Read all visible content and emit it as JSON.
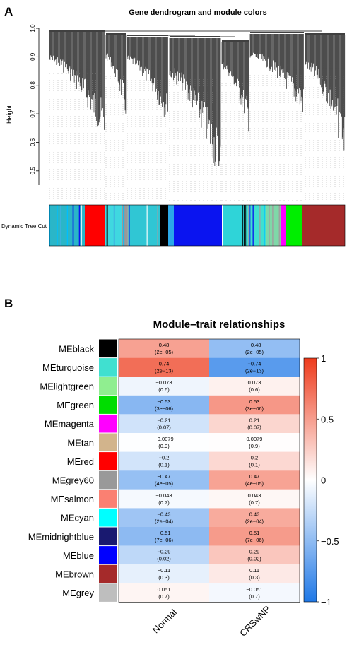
{
  "panel_a": {
    "label": "A",
    "title": "Gene dendrogram and module colors",
    "ylabel": "Height",
    "yticks": [
      "0.5",
      "0.6",
      "0.7",
      "0.8",
      "0.9",
      "1.0"
    ],
    "color_bar_label": "Dynamic Tree Cut"
  },
  "panel_b": {
    "label": "B",
    "title": "Module–trait relationships",
    "colorbar_ticks": [
      "1",
      "0.5",
      "0",
      "−0.5",
      "−1"
    ],
    "colorbar_colors": {
      "neg": "#1f78e6",
      "mid": "#ffffff",
      "pos": "#ee3b1c"
    }
  },
  "chart_data": [
    {
      "type": "dendrogram",
      "title": "Gene dendrogram and module colors",
      "ylabel": "Height",
      "ylim": [
        0.45,
        1.0
      ],
      "module_color_bar": [
        "turquoise",
        "red",
        "grey",
        "turquoise",
        "black",
        "blue",
        "turquoise",
        "lightgreen",
        "magenta",
        "green",
        "brown"
      ]
    },
    {
      "type": "heatmap",
      "title": "Module–trait relationships",
      "columns": [
        "Normal",
        "CRSwNP"
      ],
      "rows": [
        {
          "name": "MEblack",
          "color": "#000000",
          "values": [
            0.48,
            -0.48
          ],
          "labels": [
            "0.48",
            "−0.48"
          ],
          "pvals": [
            "(2e−05)",
            "(2e−05)"
          ]
        },
        {
          "name": "MEturquoise",
          "color": "#40e0d0",
          "values": [
            0.74,
            -0.74
          ],
          "labels": [
            "0.74",
            "−0.74"
          ],
          "pvals": [
            "(2e−13)",
            "(2e−13)"
          ]
        },
        {
          "name": "MElightgreen",
          "color": "#90ee90",
          "values": [
            -0.073,
            0.073
          ],
          "labels": [
            "−0.073",
            "0.073"
          ],
          "pvals": [
            "(0.6)",
            "(0.6)"
          ]
        },
        {
          "name": "MEgreen",
          "color": "#00dd00",
          "values": [
            -0.53,
            0.53
          ],
          "labels": [
            "−0.53",
            "0.53"
          ],
          "pvals": [
            "(3e−06)",
            "(3e−06)"
          ]
        },
        {
          "name": "MEmagenta",
          "color": "#ff00ff",
          "values": [
            -0.21,
            0.21
          ],
          "labels": [
            "−0.21",
            "0.21"
          ],
          "pvals": [
            "(0.07)",
            "(0.07)"
          ]
        },
        {
          "name": "MEtan",
          "color": "#d2b48c",
          "values": [
            -0.0079,
            0.0079
          ],
          "labels": [
            "−0.0079",
            "0.0079"
          ],
          "pvals": [
            "(0.9)",
            "(0.9)"
          ]
        },
        {
          "name": "MEred",
          "color": "#ff0000",
          "values": [
            -0.2,
            0.2
          ],
          "labels": [
            "−0.2",
            "0.2"
          ],
          "pvals": [
            "(0.1)",
            "(0.1)"
          ]
        },
        {
          "name": "MEgrey60",
          "color": "#999999",
          "values": [
            -0.47,
            0.47
          ],
          "labels": [
            "−0.47",
            "0.47"
          ],
          "pvals": [
            "(4e−05)",
            "(4e−05)"
          ]
        },
        {
          "name": "MEsalmon",
          "color": "#fa8072",
          "values": [
            -0.043,
            0.043
          ],
          "labels": [
            "−0.043",
            "0.043"
          ],
          "pvals": [
            "(0.7)",
            "(0.7)"
          ]
        },
        {
          "name": "MEcyan",
          "color": "#00ffff",
          "values": [
            -0.43,
            0.43
          ],
          "labels": [
            "−0.43",
            "0.43"
          ],
          "pvals": [
            "(2e−04)",
            "(2e−04)"
          ]
        },
        {
          "name": "MEmidnightblue",
          "color": "#191970",
          "values": [
            -0.51,
            0.51
          ],
          "labels": [
            "−0.51",
            "0.51"
          ],
          "pvals": [
            "(7e−06)",
            "(7e−06)"
          ]
        },
        {
          "name": "MEblue",
          "color": "#0000ff",
          "values": [
            -0.29,
            0.29
          ],
          "labels": [
            "−0.29",
            "0.29"
          ],
          "pvals": [
            "(0.02)",
            "(0.02)"
          ]
        },
        {
          "name": "MEbrown",
          "color": "#a52a2a",
          "values": [
            -0.11,
            0.11
          ],
          "labels": [
            "−0.11",
            "0.11"
          ],
          "pvals": [
            "(0.3)",
            "(0.3)"
          ]
        },
        {
          "name": "MEgrey",
          "color": "#bebebe",
          "values": [
            0.051,
            -0.051
          ],
          "labels": [
            "0.051",
            "−0.051"
          ],
          "pvals": [
            "(0.7)",
            "(0.7)"
          ]
        }
      ],
      "colorbar_range": [
        -1,
        1
      ]
    }
  ]
}
